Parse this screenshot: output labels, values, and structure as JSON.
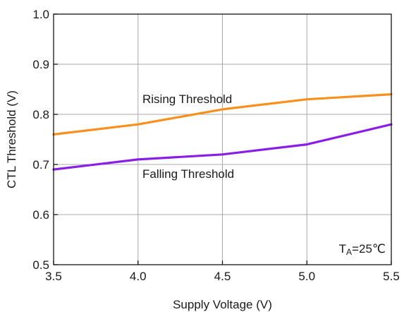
{
  "chart_data": {
    "type": "line",
    "xlabel": "Supply Voltage (V)",
    "ylabel": "CTL Threshold (V)",
    "xlim": [
      3.5,
      5.5
    ],
    "ylim": [
      0.5,
      1.0
    ],
    "x_ticks": [
      "3.5",
      "4.0",
      "4.5",
      "5.0",
      "5.5"
    ],
    "y_ticks": [
      "0.5",
      "0.6",
      "0.7",
      "0.8",
      "0.9",
      "1.0"
    ],
    "grid": true,
    "x": [
      3.5,
      4.0,
      4.5,
      5.0,
      5.5
    ],
    "series": [
      {
        "name": "Rising Threshold",
        "color": "#f7901e",
        "values": [
          0.76,
          0.78,
          0.81,
          0.83,
          0.84
        ]
      },
      {
        "name": "Falling Threshold",
        "color": "#8b1ee6",
        "values": [
          0.69,
          0.71,
          0.72,
          0.74,
          0.78
        ]
      }
    ],
    "annotation": {
      "main": "T",
      "sub": "A",
      "rest": "=25℃"
    }
  }
}
